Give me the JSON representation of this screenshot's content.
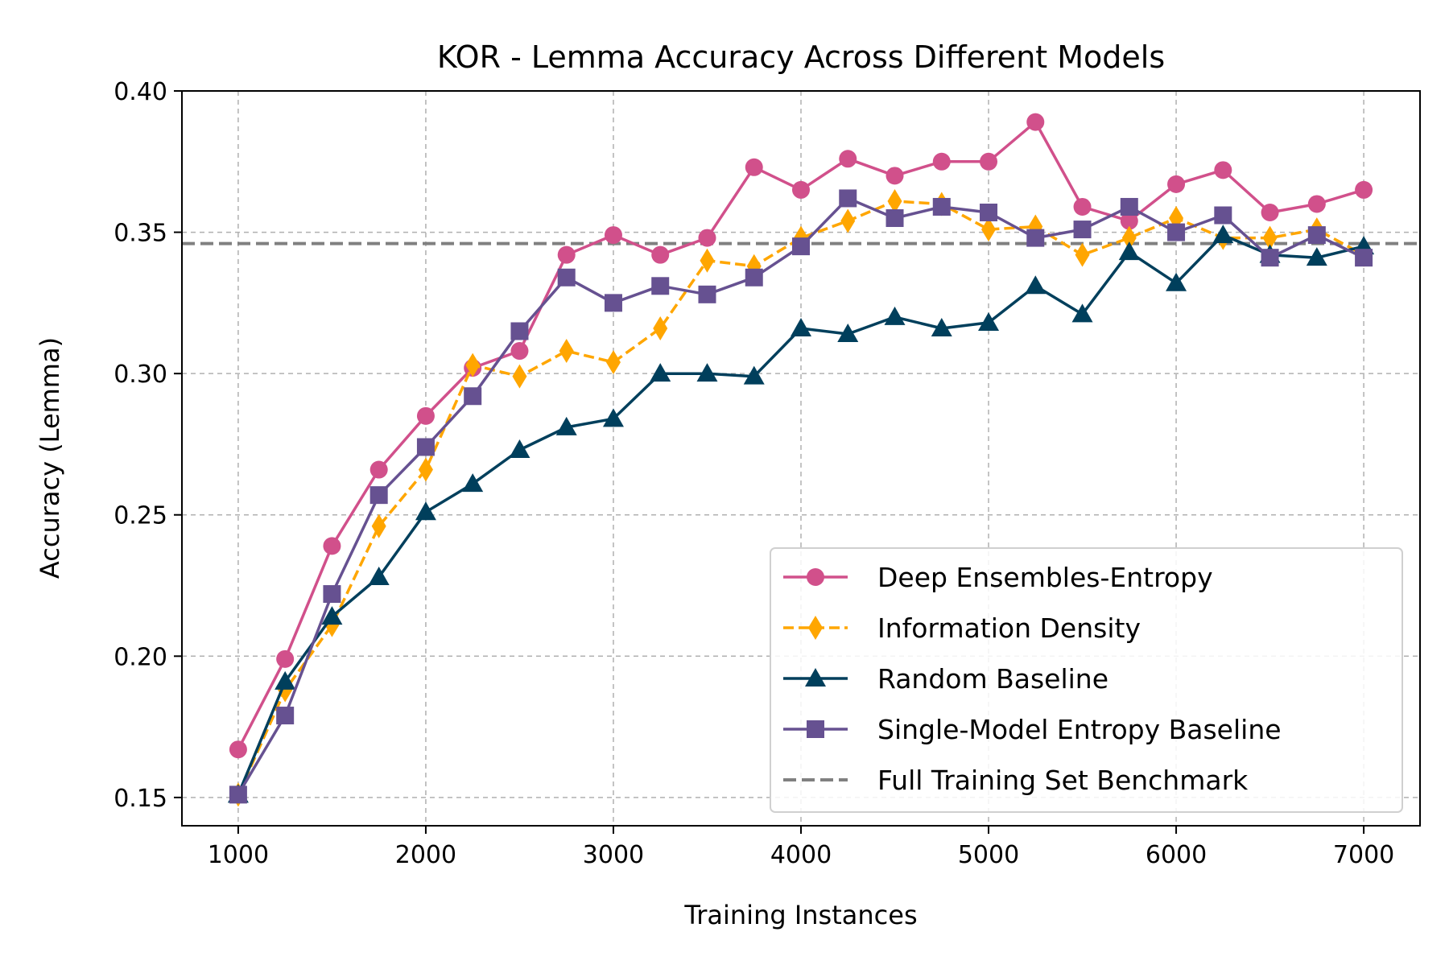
{
  "chart_data": {
    "type": "line",
    "title": "KOR - Lemma Accuracy Across Different Models",
    "xlabel": "Training Instances",
    "ylabel": "Accuracy (Lemma)",
    "xlim": [
      700,
      7300
    ],
    "ylim": [
      0.14,
      0.4
    ],
    "xticks": [
      1000,
      2000,
      3000,
      4000,
      5000,
      6000,
      7000
    ],
    "yticks": [
      0.15,
      0.2,
      0.25,
      0.3,
      0.35,
      0.4
    ],
    "ytick_labels": [
      "0.15",
      "0.20",
      "0.25",
      "0.30",
      "0.35",
      "0.40"
    ],
    "grid": true,
    "legend_position": "lower-right",
    "x": [
      1000,
      1250,
      1500,
      1750,
      2000,
      2250,
      2500,
      2750,
      3000,
      3250,
      3500,
      3750,
      4000,
      4250,
      4500,
      4750,
      5000,
      5250,
      5500,
      5750,
      6000,
      6250,
      6500,
      6750,
      7000
    ],
    "series": [
      {
        "name": "Deep Ensembles-Entropy",
        "color": "#d1508b",
        "marker": "circle",
        "dashed": false,
        "values": [
          0.167,
          0.199,
          0.239,
          0.266,
          0.285,
          0.302,
          0.308,
          0.342,
          0.349,
          0.342,
          0.348,
          0.373,
          0.365,
          0.376,
          0.37,
          0.375,
          0.375,
          0.389,
          0.359,
          0.354,
          0.367,
          0.372,
          0.357,
          0.36,
          0.365
        ]
      },
      {
        "name": "Information Density",
        "color": "#ffa600",
        "marker": "diamond",
        "dashed": true,
        "values": [
          0.151,
          0.188,
          0.211,
          0.246,
          0.266,
          0.303,
          0.299,
          0.308,
          0.304,
          0.316,
          0.34,
          0.338,
          0.348,
          0.354,
          0.361,
          0.36,
          0.351,
          0.352,
          0.342,
          0.348,
          0.355,
          0.348,
          0.348,
          0.351,
          0.342
        ]
      },
      {
        "name": "Random Baseline",
        "color": "#003f5c",
        "marker": "triangle",
        "dashed": false,
        "values": [
          0.151,
          0.191,
          0.214,
          0.228,
          0.251,
          0.261,
          0.273,
          0.281,
          0.284,
          0.3,
          0.3,
          0.299,
          0.316,
          0.314,
          0.32,
          0.316,
          0.318,
          0.331,
          0.321,
          0.343,
          0.332,
          0.349,
          0.342,
          0.341,
          0.345
        ]
      },
      {
        "name": "Single-Model Entropy Baseline",
        "color": "#665191",
        "marker": "square",
        "dashed": false,
        "values": [
          0.151,
          0.179,
          0.222,
          0.257,
          0.274,
          0.292,
          0.315,
          0.334,
          0.325,
          0.331,
          0.328,
          0.334,
          0.345,
          0.362,
          0.355,
          0.359,
          0.357,
          0.348,
          0.351,
          0.359,
          0.35,
          0.356,
          0.341,
          0.349,
          0.341
        ]
      }
    ],
    "benchmark": {
      "name": "Full Training Set Benchmark",
      "value": 0.346,
      "color": "#808080"
    }
  }
}
